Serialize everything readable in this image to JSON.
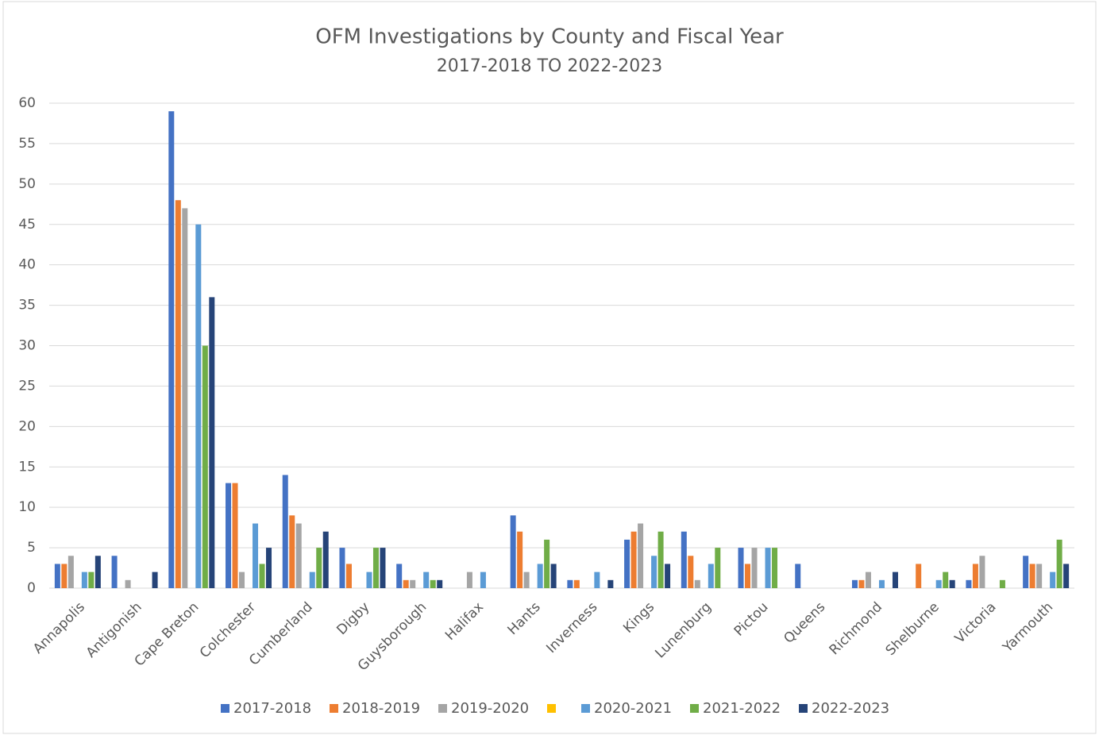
{
  "chart_data": {
    "type": "bar",
    "title": "OFM Investigations by County and Fiscal Year",
    "subtitle": "2017-2018 TO 2022-2023",
    "categories": [
      "Annapolis",
      "Antigonish",
      "Cape Breton",
      "Colchester",
      "Cumberland",
      "Digby",
      "Guysborough",
      "Halifax",
      "Hants",
      "Inverness",
      "Kings",
      "Lunenburg",
      "Pictou",
      "Queens",
      "Richmond",
      "Shelburne",
      "Victoria",
      "Yarmouth"
    ],
    "series": [
      {
        "name": "2017-2018",
        "color": "#4472c4",
        "values": [
          3,
          4,
          59,
          13,
          14,
          5,
          3,
          null,
          9,
          1,
          6,
          7,
          5,
          3,
          1,
          null,
          1,
          4
        ]
      },
      {
        "name": "2018-2019",
        "color": "#ed7d31",
        "values": [
          3,
          null,
          48,
          13,
          9,
          3,
          1,
          null,
          7,
          1,
          7,
          4,
          3,
          null,
          1,
          3,
          3,
          3
        ]
      },
      {
        "name": "2019-2020",
        "color": "#a5a5a5",
        "values": [
          4,
          1,
          47,
          2,
          8,
          null,
          1,
          2,
          2,
          null,
          8,
          1,
          5,
          null,
          2,
          null,
          4,
          3
        ]
      },
      {
        "color": "#ffc000",
        "values": [
          null,
          null,
          null,
          null,
          null,
          null,
          null,
          null,
          null,
          null,
          null,
          null,
          null,
          null,
          null,
          null,
          null,
          null
        ]
      },
      {
        "name": "2020-2021",
        "color": "#5b9bd5",
        "values": [
          2,
          null,
          45,
          8,
          2,
          2,
          2,
          2,
          3,
          2,
          4,
          3,
          5,
          null,
          1,
          1,
          null,
          2
        ]
      },
      {
        "name": "2021-2022",
        "color": "#70ad47",
        "values": [
          2,
          null,
          30,
          3,
          5,
          5,
          1,
          null,
          6,
          null,
          7,
          5,
          5,
          null,
          null,
          2,
          1,
          6
        ]
      },
      {
        "name": "2022-2023",
        "color": "#264478",
        "values": [
          4,
          2,
          36,
          5,
          7,
          5,
          1,
          null,
          3,
          1,
          3,
          null,
          null,
          null,
          2,
          1,
          null,
          3
        ]
      }
    ],
    "ylim": [
      0,
      60
    ],
    "yticks": [
      0,
      5,
      10,
      15,
      20,
      25,
      30,
      35,
      40,
      45,
      50,
      55,
      60
    ],
    "grid": true,
    "legend": "bottom"
  }
}
